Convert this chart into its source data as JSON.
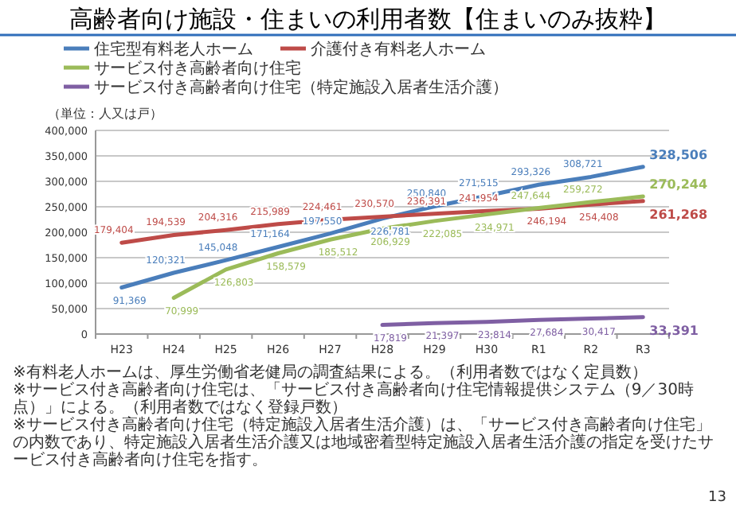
{
  "chart_data": {
    "type": "line",
    "title": "高齢者向け施設・住まいの利用者数【住まいのみ抜粋】",
    "categories": [
      "H23",
      "H24",
      "H25",
      "H26",
      "H27",
      "H28",
      "H29",
      "H30",
      "R1",
      "R2",
      "R3"
    ],
    "series": [
      {
        "name": "住宅型有料老人ホーム",
        "color": "#4a7ebb",
        "values": [
          91369,
          120321,
          145048,
          171164,
          197550,
          226781,
          250840,
          271515,
          293326,
          308721,
          328506
        ],
        "value_labels": [
          "91,369",
          "120,321",
          "145,048",
          "171,164",
          "197,550",
          "226,781",
          "250,840",
          "271,515",
          "293,326",
          "308,721",
          "328,506"
        ]
      },
      {
        "name": "介護付き有料老人ホーム",
        "color": "#be4b48",
        "values": [
          179404,
          194539,
          204316,
          215989,
          224461,
          230570,
          236391,
          241954,
          246194,
          254408,
          261268
        ],
        "value_labels": [
          "179,404",
          "194,539",
          "204,316",
          "215,989",
          "224,461",
          "230,570",
          "236,391",
          "241,954",
          "246,194",
          "254,408",
          "261,268"
        ]
      },
      {
        "name": "サービス付き高齢者向け住宅",
        "color": "#9bbb59",
        "values": [
          null,
          70999,
          126803,
          158579,
          185512,
          206929,
          222085,
          234971,
          247644,
          259272,
          270244
        ],
        "value_labels": [
          null,
          "70,999",
          "126,803",
          "158,579",
          "185,512",
          "206,929",
          "222,085",
          "234,971",
          "247,644",
          "259,272",
          "270,244"
        ]
      },
      {
        "name": "サービス付き高齢者向け住宅（特定施設入居者生活介護）",
        "color": "#7f5fa3",
        "values": [
          null,
          null,
          null,
          null,
          null,
          17819,
          21397,
          23814,
          27684,
          30417,
          33391
        ],
        "value_labels": [
          null,
          null,
          null,
          null,
          null,
          "17,819",
          "21,397",
          "23,814",
          "27,684",
          "30,417",
          "33,391"
        ]
      }
    ],
    "ylim": [
      0,
      400000
    ],
    "yticks": [
      {
        "value": 0,
        "label": "0"
      },
      {
        "value": 50000,
        "label": "50,000"
      },
      {
        "value": 100000,
        "label": "100,000"
      },
      {
        "value": 150000,
        "label": "150,000"
      },
      {
        "value": 200000,
        "label": "200,000"
      },
      {
        "value": 250000,
        "label": "250,000"
      },
      {
        "value": 300000,
        "label": "300,000"
      },
      {
        "value": 350000,
        "label": "350,000"
      },
      {
        "value": 400000,
        "label": "400,000"
      }
    ],
    "grid": "y",
    "legend": "top",
    "marker": "none",
    "annotations": [
      "（単位：人又は戸）",
      "※有料老人ホームは、厚生労働省老健局の調査結果による。（利用者数ではなく定員数）",
      "※サービス付き高齢者向け住宅は、「サービス付き高齢者向け住宅情報提供システム（9／30時点）」による。（利用者数ではなく登録戸数）",
      "※サービス付き高齢者向け住宅（特定施設入居者生活介護）は、「サービス付き高齢者向け住宅」の内数であり、特定施設入居者生活介護又は地域密着型特定施設入居者生活介護の指定を受けたサービス付き高齢者向け住宅を指す。",
      "13"
    ]
  }
}
